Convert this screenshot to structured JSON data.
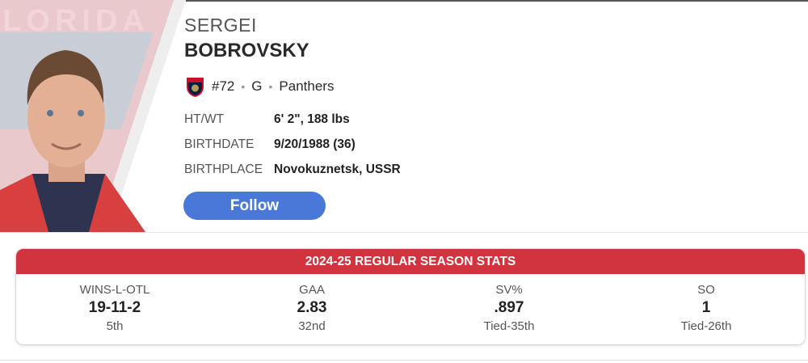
{
  "player": {
    "first_name": "SERGEI",
    "last_name": "BOBROVSKY",
    "number": "#72",
    "position": "G",
    "team": "Panthers",
    "team_logo_text": "FLORIDA",
    "info": [
      {
        "label": "HT/WT",
        "value": "6' 2\", 188 lbs"
      },
      {
        "label": "BIRTHDATE",
        "value": "9/20/1988 (36)"
      },
      {
        "label": "BIRTHPLACE",
        "value": "Novokuznetsk, USSR"
      }
    ],
    "follow_label": "Follow"
  },
  "stats": {
    "title": "2024-25 REGULAR SEASON STATS",
    "items": [
      {
        "label": "WINS-L-OTL",
        "value": "19-11-2",
        "rank": "5th"
      },
      {
        "label": "GAA",
        "value": "2.83",
        "rank": "32nd"
      },
      {
        "label": "SV%",
        "value": ".897",
        "rank": "Tied-35th"
      },
      {
        "label": "SO",
        "value": "1",
        "rank": "Tied-26th"
      }
    ]
  },
  "colors": {
    "accent_red": "#d2343f",
    "follow_blue": "#4a78d8"
  }
}
